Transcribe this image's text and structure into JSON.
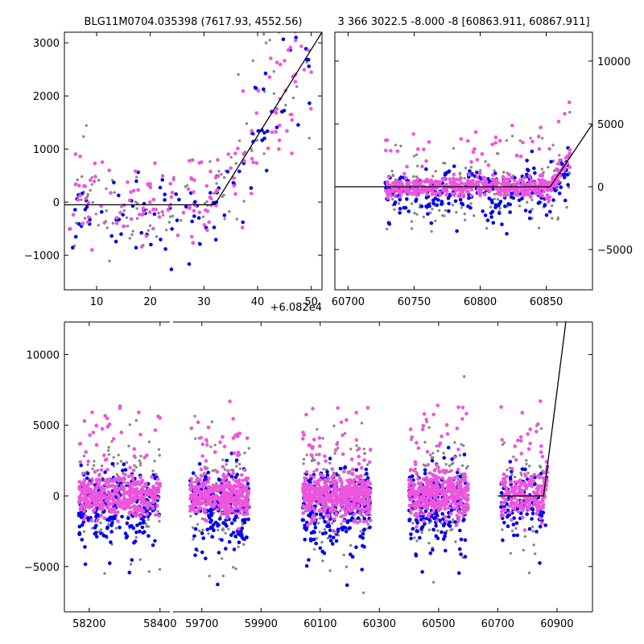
{
  "colors": {
    "primary": "#ee55dd",
    "secondary": "#0000ee",
    "tertiary": "#888888",
    "model": "#000000",
    "frame": "#000000",
    "background": "#ffffff"
  },
  "chart_data": [
    {
      "id": "top-left",
      "type": "scatter",
      "title": "BLG11M0704.035398 (7617.93, 4552.56)",
      "x_offset_label": "+6.082e4",
      "xlim": [
        4,
        52
      ],
      "ylim": [
        -1650,
        3200
      ],
      "xticks": [
        10,
        20,
        30,
        40,
        50
      ],
      "yticks": [
        -1000,
        0,
        1000,
        2000,
        3000
      ],
      "yticks_side": "left",
      "model": [
        [
          4,
          -50
        ],
        [
          32,
          -50
        ],
        [
          52,
          3200
        ]
      ],
      "series_seed": 11,
      "series": [
        {
          "color_key": "tertiary",
          "count": 110
        },
        {
          "color_key": "secondary",
          "count": 100
        },
        {
          "color_key": "primary",
          "count": 150
        }
      ]
    },
    {
      "id": "top-right",
      "type": "scatter",
      "title": "3 366 3022.5 -8.000 -8 [60863.911, 60867.911]",
      "xlim": [
        60690,
        60885
      ],
      "ylim": [
        -8200,
        12300
      ],
      "xticks": [
        60700,
        60750,
        60800,
        60850
      ],
      "yticks": [
        -5000,
        0,
        5000,
        10000
      ],
      "yticks_side": "right",
      "model": [
        [
          60690,
          0
        ],
        [
          60853,
          0
        ],
        [
          60885,
          5000
        ]
      ],
      "series_seed": 23,
      "series": [
        {
          "color_key": "tertiary",
          "count": 160
        },
        {
          "color_key": "secondary",
          "count": 260
        },
        {
          "color_key": "primary",
          "count": 520
        }
      ]
    },
    {
      "id": "bottom",
      "type": "scatter",
      "title": "",
      "segments": [
        {
          "xlim": [
            58130,
            58430
          ],
          "xticks": [
            58200,
            58400
          ]
        },
        {
          "xlim": [
            59600,
            61020
          ],
          "xticks": [
            59700,
            59900,
            60100,
            60300,
            60500,
            60700,
            60900
          ]
        }
      ],
      "ylim": [
        -8200,
        12300
      ],
      "yticks": [
        -5000,
        0,
        5000,
        10000
      ],
      "yticks_side": "left",
      "model": [
        [
          60700,
          0
        ],
        [
          60855,
          0
        ],
        [
          60930,
          12300
        ]
      ],
      "seasons": [
        {
          "x0": 58170,
          "x1": 58400,
          "count": 780
        },
        {
          "x0": 59660,
          "x1": 59860,
          "count": 680
        },
        {
          "x0": 60040,
          "x1": 60270,
          "count": 880
        },
        {
          "x0": 60400,
          "x1": 60600,
          "count": 720
        },
        {
          "x0": 60710,
          "x1": 60868,
          "count": 360
        }
      ],
      "series_seed": 37
    }
  ]
}
